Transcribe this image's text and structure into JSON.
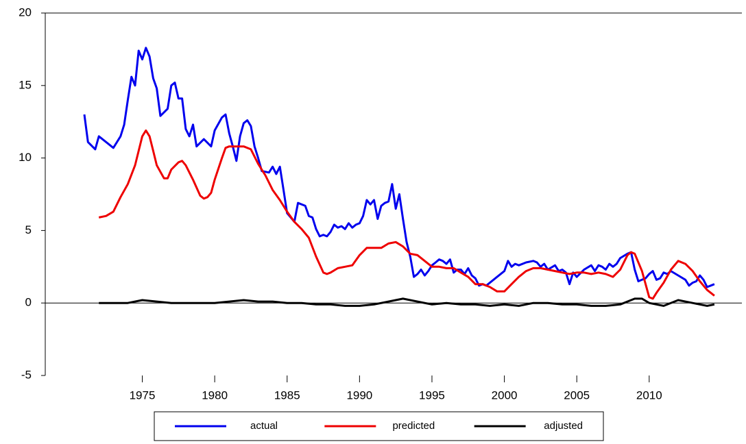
{
  "chart_data": {
    "type": "line",
    "xlim": [
      1968.3,
      2016.4
    ],
    "ylim": [
      -5,
      20
    ],
    "xticks": [
      1975,
      1980,
      1985,
      1990,
      1995,
      2000,
      2005,
      2010
    ],
    "yticks": [
      -5,
      0,
      5,
      10,
      15,
      20
    ],
    "legend": "bottom",
    "series": [
      {
        "name": "actual",
        "color": "#0000ee",
        "x": [
          1971.0,
          1971.25,
          1971.75,
          1972.0,
          1972.5,
          1973.0,
          1973.5,
          1973.75,
          1974.0,
          1974.25,
          1974.5,
          1974.75,
          1975.0,
          1975.25,
          1975.5,
          1975.75,
          1976.0,
          1976.25,
          1976.75,
          1977.0,
          1977.25,
          1977.5,
          1977.75,
          1978.0,
          1978.25,
          1978.5,
          1978.75,
          1979.25,
          1979.75,
          1980.0,
          1980.5,
          1980.75,
          1981.0,
          1981.25,
          1981.5,
          1981.75,
          1982.0,
          1982.25,
          1982.5,
          1982.75,
          1983.0,
          1983.25,
          1983.75,
          1984.0,
          1984.25,
          1984.5,
          1984.75,
          1985.0,
          1985.5,
          1985.75,
          1986.25,
          1986.5,
          1986.75,
          1987.0,
          1987.25,
          1987.5,
          1987.75,
          1988.0,
          1988.25,
          1988.5,
          1988.75,
          1989.0,
          1989.25,
          1989.5,
          1989.75,
          1990.0,
          1990.25,
          1990.5,
          1990.75,
          1991.0,
          1991.25,
          1991.5,
          1991.75,
          1992.0,
          1992.25,
          1992.5,
          1992.75,
          1993.0,
          1993.25,
          1993.5,
          1993.75,
          1994.0,
          1994.25,
          1994.5,
          1994.75,
          1995.0,
          1995.25,
          1995.5,
          1995.75,
          1996.0,
          1996.25,
          1996.5,
          1996.75,
          1997.0,
          1997.25,
          1997.5,
          1997.75,
          1998.0,
          1998.25,
          1998.5,
          1998.75,
          1999.0,
          1999.5,
          2000.0,
          2000.25,
          2000.5,
          2000.75,
          2001.0,
          2001.5,
          2002.0,
          2002.25,
          2002.5,
          2002.75,
          2003.0,
          2003.5,
          2003.75,
          2004.0,
          2004.25,
          2004.5,
          2004.75,
          2005.0,
          2005.5,
          2006.0,
          2006.25,
          2006.5,
          2006.75,
          2007.0,
          2007.25,
          2007.5,
          2007.75,
          2008.0,
          2008.5,
          2008.75,
          2009.0,
          2009.25,
          2009.5,
          2009.75,
          2010.0,
          2010.25,
          2010.5,
          2010.75,
          2011.0,
          2011.25,
          2011.5,
          2012.0,
          2012.5,
          2012.75,
          2013.0,
          2013.25,
          2013.5,
          2013.75,
          2014.0,
          2014.25,
          2014.5
        ],
        "values": [
          13,
          11.1,
          10.6,
          11.5,
          11.1,
          10.7,
          11.5,
          12.3,
          14,
          15.6,
          15,
          17.4,
          16.8,
          17.6,
          17,
          15.5,
          14.8,
          12.9,
          13.4,
          15,
          15.2,
          14.1,
          14.1,
          12,
          11.5,
          12.3,
          10.8,
          11.3,
          10.8,
          11.9,
          12.8,
          13,
          11.7,
          10.8,
          9.8,
          11.5,
          12.4,
          12.6,
          12.2,
          10.8,
          10,
          9.1,
          9,
          9.4,
          8.9,
          9.4,
          7.8,
          6.2,
          5.6,
          6.9,
          6.7,
          6,
          5.9,
          5.1,
          4.6,
          4.7,
          4.6,
          4.9,
          5.4,
          5.2,
          5.3,
          5.1,
          5.5,
          5.2,
          5.4,
          5.5,
          6,
          7.1,
          6.8,
          7.1,
          5.8,
          6.7,
          6.9,
          7,
          8.2,
          6.5,
          7.5,
          5.8,
          4.2,
          3.2,
          1.8,
          2,
          2.3,
          1.9,
          2.2,
          2.6,
          2.8,
          3,
          2.9,
          2.7,
          3,
          2.1,
          2.3,
          2.3,
          2,
          2.4,
          1.9,
          1.7,
          1.2,
          1.3,
          1.2,
          1.4,
          1.8,
          2.2,
          2.9,
          2.5,
          2.7,
          2.6,
          2.8,
          2.9,
          2.8,
          2.5,
          2.7,
          2.3,
          2.6,
          2.2,
          2.3,
          2.1,
          1.3,
          2.1,
          1.8,
          2.3,
          2.6,
          2.2,
          2.6,
          2.5,
          2.3,
          2.7,
          2.5,
          2.7,
          3.1,
          3.4,
          3.5,
          2.3,
          1.5,
          1.6,
          1.7,
          2,
          2.2,
          1.6,
          1.7,
          2.1,
          2,
          2.2,
          1.9,
          1.6,
          1.2,
          1.4,
          1.5,
          1.9,
          1.6,
          1.1,
          1.2,
          1.3
        ]
      },
      {
        "name": "predicted",
        "color": "#ee0000",
        "x": [
          1972.0,
          1972.5,
          1973.0,
          1973.5,
          1974.0,
          1974.5,
          1975.0,
          1975.25,
          1975.5,
          1975.75,
          1976.0,
          1976.5,
          1976.75,
          1977.0,
          1977.5,
          1977.75,
          1978.0,
          1978.5,
          1979.0,
          1979.25,
          1979.5,
          1979.75,
          1980.0,
          1980.5,
          1980.75,
          1981.0,
          1981.5,
          1982.0,
          1982.5,
          1983.0,
          1983.5,
          1984.0,
          1984.5,
          1985.0,
          1985.5,
          1986.0,
          1986.5,
          1987.0,
          1987.5,
          1987.75,
          1988.0,
          1988.5,
          1989.0,
          1989.5,
          1990.0,
          1990.5,
          1991.0,
          1991.5,
          1992.0,
          1992.5,
          1993.0,
          1993.5,
          1994.0,
          1994.5,
          1995.0,
          1995.5,
          1996.0,
          1996.5,
          1997.0,
          1997.5,
          1998.0,
          1998.5,
          1999.0,
          1999.5,
          2000.0,
          2000.5,
          2001.0,
          2001.5,
          2002.0,
          2002.5,
          2003.0,
          2003.5,
          2004.0,
          2004.5,
          2005.0,
          2005.5,
          2006.0,
          2006.5,
          2007.0,
          2007.5,
          2008.0,
          2008.5,
          2008.75,
          2009.0,
          2009.5,
          2010.0,
          2010.25,
          2010.5,
          2011.0,
          2011.5,
          2012.0,
          2012.5,
          2013.0,
          2013.5,
          2014.0,
          2014.5
        ],
        "values": [
          5.9,
          6,
          6.3,
          7.3,
          8.2,
          9.5,
          11.5,
          11.9,
          11.5,
          10.5,
          9.5,
          8.6,
          8.6,
          9.2,
          9.7,
          9.8,
          9.5,
          8.5,
          7.4,
          7.2,
          7.3,
          7.6,
          8.5,
          10,
          10.7,
          10.8,
          10.8,
          10.8,
          10.6,
          9.6,
          8.8,
          7.8,
          7.1,
          6.3,
          5.6,
          5.1,
          4.5,
          3.2,
          2.1,
          2,
          2.1,
          2.4,
          2.5,
          2.6,
          3.3,
          3.8,
          3.8,
          3.8,
          4.1,
          4.2,
          3.9,
          3.4,
          3.3,
          2.9,
          2.5,
          2.5,
          2.4,
          2.4,
          2.1,
          1.8,
          1.3,
          1.3,
          1.1,
          0.8,
          0.8,
          1.3,
          1.8,
          2.2,
          2.4,
          2.4,
          2.3,
          2.2,
          2.1,
          2,
          2.1,
          2.1,
          2,
          2.1,
          2,
          1.8,
          2.3,
          3.3,
          3.5,
          3.4,
          2.2,
          0.4,
          0.3,
          0.7,
          1.4,
          2.3,
          2.9,
          2.7,
          2.2,
          1.5,
          0.9,
          0.5
        ]
      },
      {
        "name": "adjusted",
        "color": "#000000",
        "x": [
          1972,
          1973,
          1974,
          1975,
          1976,
          1977,
          1978,
          1979,
          1980,
          1981,
          1982,
          1983,
          1984,
          1985,
          1986,
          1987,
          1988,
          1989,
          1990,
          1991,
          1992,
          1993,
          1994,
          1995,
          1996,
          1997,
          1998,
          1999,
          2000,
          2001,
          2002,
          2003,
          2004,
          2005,
          2006,
          2007,
          2008,
          2009,
          2009.5,
          2010,
          2011,
          2012,
          2013,
          2014,
          2014.5
        ],
        "values": [
          0,
          0,
          0,
          0.2,
          0.1,
          0,
          0,
          0,
          0,
          0.1,
          0.2,
          0.1,
          0.1,
          0,
          0,
          -0.1,
          -0.1,
          -0.2,
          -0.2,
          -0.1,
          0.1,
          0.3,
          0.1,
          -0.1,
          0,
          -0.1,
          -0.1,
          -0.2,
          -0.1,
          -0.2,
          0,
          0,
          -0.1,
          -0.1,
          -0.2,
          -0.2,
          -0.1,
          0.3,
          0.3,
          0,
          -0.2,
          0.2,
          0,
          -0.2,
          -0.1
        ]
      }
    ]
  }
}
